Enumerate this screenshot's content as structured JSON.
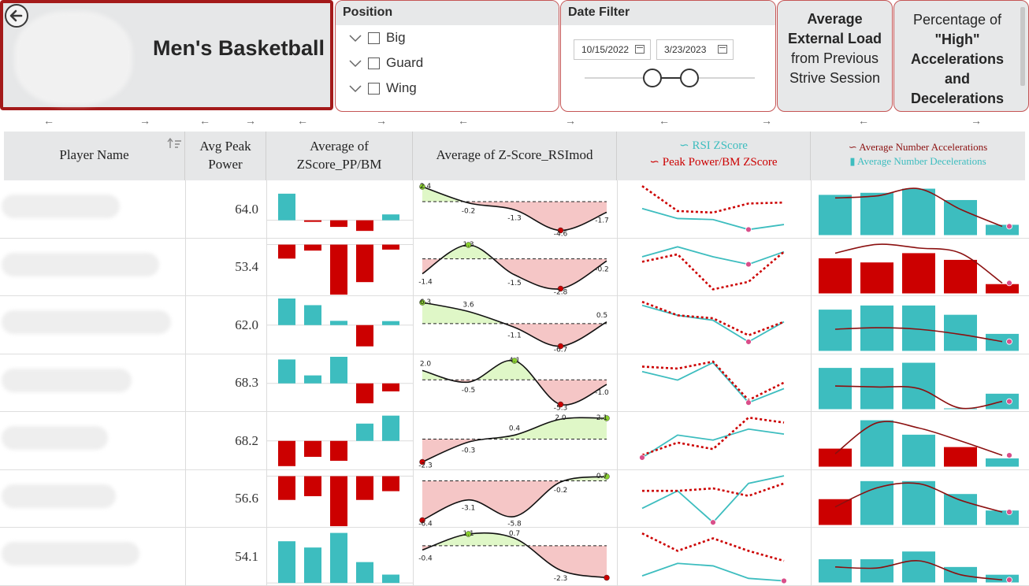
{
  "header": {
    "team_title": "Men's Basketball",
    "position_slicer": {
      "title": "Position",
      "items": [
        {
          "label": "Big",
          "checked": false
        },
        {
          "label": "Guard",
          "checked": false
        },
        {
          "label": "Wing",
          "checked": false
        }
      ]
    },
    "date_filter": {
      "title": "Date Filter",
      "start": "10/15/2022",
      "end": "3/23/2023"
    },
    "card_external_load": {
      "bold_lines": [
        "Average",
        "External Load"
      ],
      "plain_lines": [
        "from Previous",
        "Strive Session"
      ]
    },
    "card_accelerations": {
      "plain_line": "Percentage of",
      "bold_lines": [
        "\"High\"",
        "Accelerations",
        "and",
        "Decelerations"
      ]
    }
  },
  "table": {
    "columns": {
      "player_name": "Player Name",
      "avg_peak_power": "Avg Peak Power",
      "zscore_pp_bm": "Average of ZScore_PP/BM",
      "zscore_rsimod": "Average of Z-Score_RSImod",
      "lines_legend": {
        "rsi": "RSI ZScore",
        "pp": "Peak Power/BM ZScore"
      },
      "accel_legend": {
        "accel": "Average Number Accelerations",
        "decel": "Average Number Decelerations"
      }
    },
    "rows": [
      {
        "avg_peak_power": "64.0",
        "pp_bars": [
          1.0,
          -0.06,
          -0.25,
          -0.4,
          0.22
        ],
        "rsi_labels": [
          "2.4",
          "-0.2",
          "-1.3",
          "-4.6",
          "-1.7"
        ],
        "rsi_vals": [
          2.4,
          -0.2,
          -1.3,
          -4.6,
          -1.7
        ]
      },
      {
        "avg_peak_power": "53.4",
        "pp_bars": [
          -0.28,
          -0.12,
          -1.0,
          -0.75,
          -0.1
        ],
        "rsi_labels": [
          "-1.4",
          "1.3",
          "-1.5",
          "-2.8",
          "-0.2"
        ],
        "rsi_vals": [
          -1.4,
          1.3,
          -1.5,
          -2.8,
          -0.2
        ]
      },
      {
        "avg_peak_power": "62.0",
        "pp_bars": [
          1.0,
          0.75,
          0.16,
          -0.8,
          0.15
        ],
        "rsi_labels": [
          "6.3",
          "3.6",
          "-1.1",
          "-6.7",
          "0.5"
        ],
        "rsi_vals": [
          6.3,
          3.6,
          -1.1,
          -6.7,
          0.5
        ]
      },
      {
        "avg_peak_power": "68.3",
        "pp_bars": [
          0.9,
          0.3,
          1.0,
          -0.75,
          -0.3
        ],
        "rsi_labels": [
          "2.0",
          "-0.5",
          "4.1",
          "-5.3",
          "-1.0"
        ],
        "rsi_vals": [
          2.0,
          -0.5,
          4.1,
          -5.3,
          -1.0
        ]
      },
      {
        "avg_peak_power": "68.2",
        "pp_bars": [
          -0.95,
          -0.6,
          -0.75,
          0.65,
          0.95
        ],
        "rsi_labels": [
          "-2.3",
          "-0.3",
          "0.4",
          "2.0",
          "2.1"
        ],
        "rsi_vals": [
          -2.3,
          -0.3,
          0.4,
          2.0,
          2.1
        ]
      },
      {
        "avg_peak_power": "56.6",
        "pp_bars": [
          -0.95,
          -0.8,
          -2.0,
          -0.95,
          -0.6
        ],
        "rsi_labels": [
          "-6.4",
          "-3.1",
          "-5.8",
          "-0.2",
          "0.7"
        ],
        "rsi_vals": [
          -6.4,
          -3.1,
          -5.8,
          -0.2,
          0.7
        ]
      },
      {
        "avg_peak_power": "54.1",
        "pp_bars": [
          1.0,
          0.85,
          1.2,
          0.5,
          0.2
        ],
        "rsi_labels": [
          "-0.4",
          "1.1",
          "0.7",
          "-2.3",
          ""
        ],
        "rsi_vals": [
          -0.4,
          1.1,
          0.7,
          -2.3,
          -3.0
        ]
      }
    ]
  },
  "colors": {
    "teal": "#3dbdbf",
    "red": "#cc0000",
    "dark_red": "#8b1010",
    "pos_fill": "#dff7c7",
    "neg_fill": "#f5c6c6",
    "pink_dot": "#d94f8a",
    "green_dot": "#8ad12e",
    "border_red": "#a41a1a",
    "header_gray": "#e6e7e8"
  },
  "icons": [
    "back-arrow-icon",
    "chevron-down-icon",
    "checkbox-icon",
    "calendar-icon",
    "sort-icon",
    "left-arrow-icon",
    "right-arrow-icon"
  ]
}
